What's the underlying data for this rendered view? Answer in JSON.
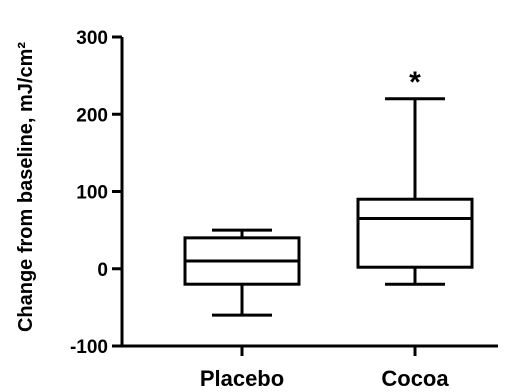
{
  "chart_data": {
    "type": "box",
    "ylabel": "Change from baseline, mJ/cm²",
    "ylim": [
      -100,
      300
    ],
    "yticks": [
      "-100",
      "0",
      "100",
      "200",
      "300"
    ],
    "ytick_values": [
      -100,
      0,
      100,
      200,
      300
    ],
    "categories": [
      "Placebo",
      "Cocoa"
    ],
    "boxes": [
      {
        "category": "Placebo",
        "min": -60,
        "q1": -20,
        "median": 10,
        "q3": 40,
        "max": 50
      },
      {
        "category": "Cocoa",
        "min": -20,
        "q1": 2,
        "median": 65,
        "q3": 90,
        "max": 220
      }
    ],
    "annotations": [
      {
        "category": "Cocoa",
        "text": "*",
        "y": 255
      }
    ],
    "grid": false,
    "legend": "none"
  }
}
